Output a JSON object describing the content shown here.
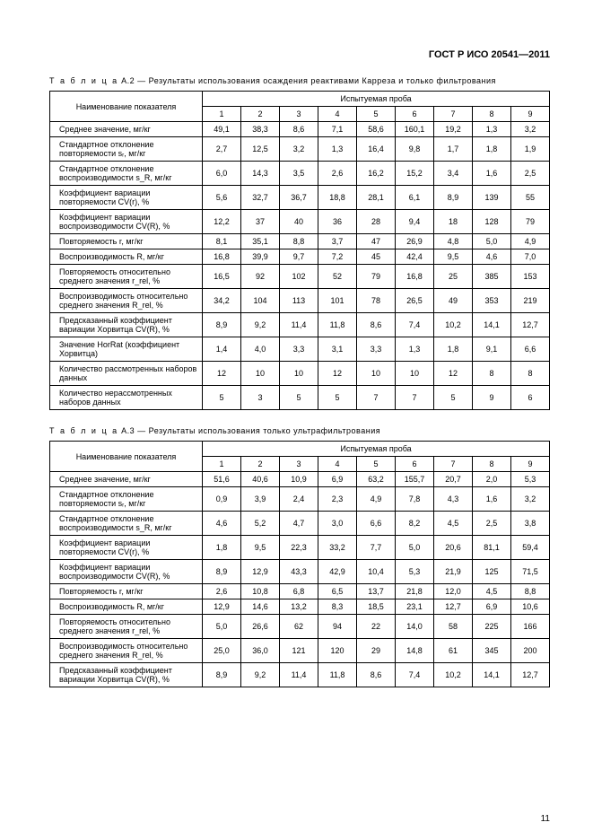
{
  "header": "ГОСТ Р ИСО 20541—2011",
  "page_number": "11",
  "table_a2": {
    "title_lead": "Т а б л и ц а",
    "title_rest": "  А.2 — Результаты использования осаждения реактивами Карреза и только фильтрования",
    "param_header": "Наименование показателя",
    "group_header": "Испытуемая проба",
    "col_nums": [
      "1",
      "2",
      "3",
      "4",
      "5",
      "6",
      "7",
      "8",
      "9"
    ],
    "rows": [
      {
        "label": "Среднее значение, мг/кг",
        "v": [
          "49,1",
          "38,3",
          "8,6",
          "7,1",
          "58,6",
          "160,1",
          "19,2",
          "1,3",
          "3,2"
        ]
      },
      {
        "label": "Стандартное отклонение повторяемости sᵣ, мг/кг",
        "v": [
          "2,7",
          "12,5",
          "3,2",
          "1,3",
          "16,4",
          "9,8",
          "1,7",
          "1,8",
          "1,9"
        ]
      },
      {
        "label": "Стандартное отклонение воспроизводимости s_R, мг/кг",
        "v": [
          "6,0",
          "14,3",
          "3,5",
          "2,6",
          "16,2",
          "15,2",
          "3,4",
          "1,6",
          "2,5"
        ]
      },
      {
        "label": "Коэффициент вариации повторяемости CV(r), %",
        "v": [
          "5,6",
          "32,7",
          "36,7",
          "18,8",
          "28,1",
          "6,1",
          "8,9",
          "139",
          "55"
        ]
      },
      {
        "label": "Коэффициент вариации воспроизводимости CV(R), %",
        "v": [
          "12,2",
          "37",
          "40",
          "36",
          "28",
          "9,4",
          "18",
          "128",
          "79"
        ]
      },
      {
        "label": "Повторяемость r, мг/кг",
        "v": [
          "8,1",
          "35,1",
          "8,8",
          "3,7",
          "47",
          "26,9",
          "4,8",
          "5,0",
          "4,9"
        ]
      },
      {
        "label": "Воспроизводимость R, мг/кг",
        "v": [
          "16,8",
          "39,9",
          "9,7",
          "7,2",
          "45",
          "42,4",
          "9,5",
          "4,6",
          "7,0"
        ]
      },
      {
        "label": "Повторяемость относительно среднего значения r_rel, %",
        "v": [
          "16,5",
          "92",
          "102",
          "52",
          "79",
          "16,8",
          "25",
          "385",
          "153"
        ]
      },
      {
        "label": "Воспроизводимость относительно среднего значения R_rel, %",
        "v": [
          "34,2",
          "104",
          "113",
          "101",
          "78",
          "26,5",
          "49",
          "353",
          "219"
        ]
      },
      {
        "label": "Предсказанный коэффициент вариации Хорвитца CV(R), %",
        "v": [
          "8,9",
          "9,2",
          "11,4",
          "11,8",
          "8,6",
          "7,4",
          "10,2",
          "14,1",
          "12,7"
        ]
      },
      {
        "label": "Значение HorRat (коэффициент Хорвитца)",
        "v": [
          "1,4",
          "4,0",
          "3,3",
          "3,1",
          "3,3",
          "1,3",
          "1,8",
          "9,1",
          "6,6"
        ]
      },
      {
        "label": "Количество рассмотренных наборов данных",
        "v": [
          "12",
          "10",
          "10",
          "12",
          "10",
          "10",
          "12",
          "8",
          "8"
        ]
      },
      {
        "label": "Количество нерассмотренных наборов данных",
        "v": [
          "5",
          "3",
          "5",
          "5",
          "7",
          "7",
          "5",
          "9",
          "6"
        ]
      }
    ]
  },
  "table_a3": {
    "title_lead": "Т а б л и ц а",
    "title_rest": "  А.3 — Результаты использования только ультрафильтрования",
    "param_header": "Наименование показателя",
    "group_header": "Испытуемая проба",
    "col_nums": [
      "1",
      "2",
      "3",
      "4",
      "5",
      "6",
      "7",
      "8",
      "9"
    ],
    "rows": [
      {
        "label": "Среднее значение, мг/кг",
        "v": [
          "51,6",
          "40,6",
          "10,9",
          "6,9",
          "63,2",
          "155,7",
          "20,7",
          "2,0",
          "5,3"
        ]
      },
      {
        "label": "Стандартное отклонение повторяемости sᵣ, мг/кг",
        "v": [
          "0,9",
          "3,9",
          "2,4",
          "2,3",
          "4,9",
          "7,8",
          "4,3",
          "1,6",
          "3,2"
        ]
      },
      {
        "label": "Стандартное отклонение воспроизводимости s_R, мг/кг",
        "v": [
          "4,6",
          "5,2",
          "4,7",
          "3,0",
          "6,6",
          "8,2",
          "4,5",
          "2,5",
          "3,8"
        ]
      },
      {
        "label": "Коэффициент вариации повторяемости CV(r), %",
        "v": [
          "1,8",
          "9,5",
          "22,3",
          "33,2",
          "7,7",
          "5,0",
          "20,6",
          "81,1",
          "59,4"
        ]
      },
      {
        "label": "Коэффициент вариации воспроизводимости CV(R), %",
        "v": [
          "8,9",
          "12,9",
          "43,3",
          "42,9",
          "10,4",
          "5,3",
          "21,9",
          "125",
          "71,5"
        ]
      },
      {
        "label": "Повторяемость r, мг/кг",
        "v": [
          "2,6",
          "10,8",
          "6,8",
          "6,5",
          "13,7",
          "21,8",
          "12,0",
          "4,5",
          "8,8"
        ]
      },
      {
        "label": "Воспроизводимость R, мг/кг",
        "v": [
          "12,9",
          "14,6",
          "13,2",
          "8,3",
          "18,5",
          "23,1",
          "12,7",
          "6,9",
          "10,6"
        ]
      },
      {
        "label": "Повторяемость относительно среднего значения r_rel, %",
        "v": [
          "5,0",
          "26,6",
          "62",
          "94",
          "22",
          "14,0",
          "58",
          "225",
          "166"
        ]
      },
      {
        "label": "Воспроизводимость относительно среднего значения R_rel, %",
        "v": [
          "25,0",
          "36,0",
          "121",
          "120",
          "29",
          "14,8",
          "61",
          "345",
          "200"
        ]
      },
      {
        "label": "Предсказанный коэффициент вариации Хорвитца CV(R), %",
        "v": [
          "8,9",
          "9,2",
          "11,4",
          "11,8",
          "8,6",
          "7,4",
          "10,2",
          "14,1",
          "12,7"
        ]
      }
    ]
  }
}
